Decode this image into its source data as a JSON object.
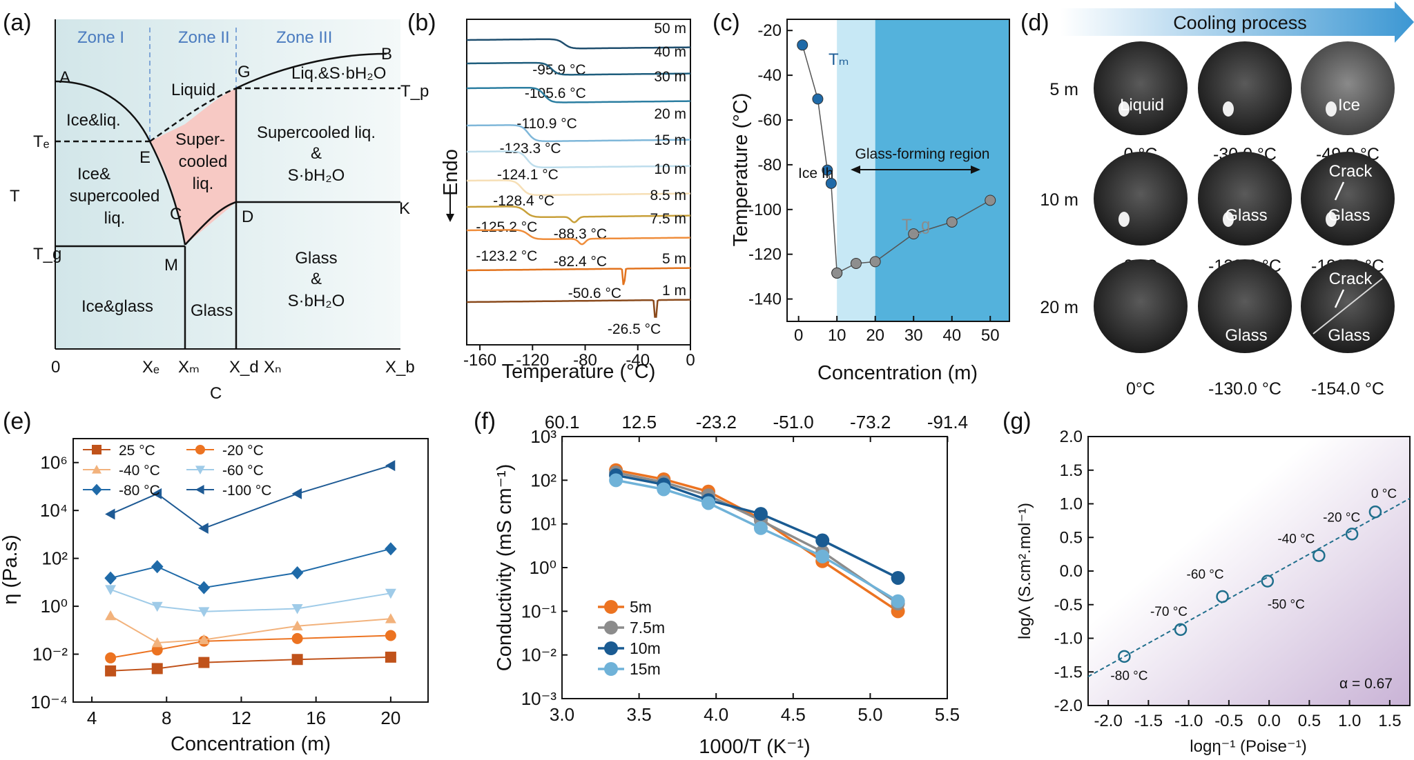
{
  "panel_labels": [
    "(a)",
    "(b)",
    "(c)",
    "(d)",
    "(e)",
    "(f)",
    "(g)"
  ],
  "colors": {
    "ice": "#5b9fc7",
    "deep_blue": "#1f5e97",
    "light_blue": "#7fb7d9",
    "orange": "#ec7321",
    "grey": "#8c8c8c",
    "navy": "#1e3f6d",
    "tan": "#f2b27c",
    "pink": "#f7c9c4",
    "teal_region": "#54b2dc",
    "light_region": "#c7e8f5"
  },
  "panel_a": {
    "zones": [
      "Zone I",
      "Zone II",
      "Zone III"
    ],
    "points": {
      "A": "A",
      "B": "B",
      "C": "C",
      "D": "D",
      "E": "E",
      "G": "G",
      "K": "K",
      "M": "M"
    },
    "y_labels": {
      "T": "T",
      "Te": "Tₑ",
      "Tg": "T_g",
      "Tp": "T_p"
    },
    "x_labels": {
      "zero": "0",
      "xe": "Xₑ",
      "xm": "Xₘ",
      "xd": "X_d",
      "xn": "Xₙ",
      "xb": "X_b"
    },
    "x_axis_title": "C",
    "regions": {
      "liquid": "Liquid",
      "ice_liq": "Ice&liq.",
      "ice_sc_1": "Ice&",
      "ice_sc_2": "supercooled",
      "ice_sc_3": "liq.",
      "super_1": "Super-",
      "super_2": "cooled",
      "super_3": "liq.",
      "liq_s": "Liq.&S·bH₂O",
      "sc_s_1": "Supercooled liq.",
      "sc_s_2": "&",
      "sc_s_3": "S·bH₂O",
      "ice_glass": "Ice&glass",
      "glass": "Glass",
      "glass_s_1": "Glass",
      "glass_s_2": "&",
      "glass_s_3": "S·bH₂O"
    }
  },
  "chart_data": [
    {
      "panel": "b",
      "type": "line",
      "xlabel": "Temperature (°C)",
      "ylabel": "Endo",
      "xlim": [
        -170,
        0
      ],
      "xticks": [
        "-160",
        "-120",
        "-80",
        "-40",
        "0"
      ],
      "curves": [
        {
          "name": "50 m",
          "color": "#1f4e6e",
          "annotations": [
            "-95.9 °C"
          ]
        },
        {
          "name": "40 m",
          "color": "#1f5e7d",
          "annotations": [
            "-105.6 °C"
          ]
        },
        {
          "name": "30 m",
          "color": "#2b7ea1",
          "annotations": [
            "-110.9 °C"
          ]
        },
        {
          "name": "20 m",
          "color": "#7fb7d9",
          "annotations": [
            "-123.3 °C"
          ]
        },
        {
          "name": "15 m",
          "color": "#bdddec",
          "annotations": [
            "-124.1 °C"
          ]
        },
        {
          "name": "10 m",
          "color": "#f6dfb6",
          "annotations": [
            "-128.4 °C"
          ]
        },
        {
          "name": "8.5 m",
          "color": "#c8a03a",
          "annotations": [
            "-125.2 °C",
            "-88.3 °C"
          ]
        },
        {
          "name": "7.5 m",
          "color": "#ef8d3b",
          "annotations": [
            "-123.2 °C",
            "-82.4 °C"
          ]
        },
        {
          "name": "5 m",
          "color": "#e2731e",
          "annotations": [
            "-50.6 °C"
          ]
        },
        {
          "name": "1 m",
          "color": "#8a4a1c",
          "annotations": [
            "-26.5 °C"
          ]
        }
      ]
    },
    {
      "panel": "c",
      "type": "scatter",
      "xlabel": "Concentration (m)",
      "ylabel": "Temperature (°C)",
      "xlim": [
        -3,
        55
      ],
      "ylim": [
        -150,
        -15
      ],
      "xticks": [
        0,
        10,
        20,
        30,
        40,
        50
      ],
      "yticks": [
        -20,
        -40,
        -60,
        -80,
        -100,
        -120,
        -140
      ],
      "series": [
        {
          "name": "Tm",
          "x": [
            1,
            5,
            7.5,
            8.5,
            10
          ],
          "y": [
            -26.5,
            -50.6,
            -82.4,
            -88.3,
            -128.4
          ]
        },
        {
          "name": "Tg",
          "x": [
            10,
            15,
            20,
            30,
            40,
            50
          ],
          "y": [
            -128.4,
            -124.1,
            -123.3,
            -110.9,
            -105.6,
            -95.9
          ]
        }
      ],
      "labels": {
        "tm": "Tₘ",
        "tg": "T_g",
        "ice": "Ice Ih",
        "region": "Glass-forming region"
      }
    },
    {
      "panel": "e",
      "type": "line",
      "xlabel": "Concentration (m)",
      "ylabel": "η (Pa.s)",
      "log_y": true,
      "xlim": [
        3,
        22
      ],
      "ylim_exp": [
        -4,
        7
      ],
      "xticks": [
        4,
        8,
        12,
        16,
        20
      ],
      "yticks": [
        "10⁻⁴",
        "10⁻²",
        "10⁰",
        "10²",
        "10⁴",
        "10⁶"
      ],
      "x": [
        5,
        7.5,
        10,
        15,
        20
      ],
      "series": [
        {
          "name": "25 °C",
          "color": "#c0521a",
          "marker": "square",
          "values": [
            0.002,
            0.0025,
            0.0045,
            0.006,
            0.0075
          ]
        },
        {
          "name": "-20 °C",
          "color": "#ec7321",
          "marker": "circle",
          "values": [
            0.007,
            0.015,
            0.035,
            0.045,
            0.06
          ]
        },
        {
          "name": "-40 °C",
          "color": "#f2b27c",
          "marker": "triangle-up",
          "values": [
            0.4,
            0.03,
            0.04,
            0.15,
            0.3
          ]
        },
        {
          "name": "-60 °C",
          "color": "#9fcbe8",
          "marker": "triangle-down",
          "values": [
            5,
            1.0,
            0.6,
            0.8,
            3.5
          ]
        },
        {
          "name": "-80 °C",
          "color": "#1f6aa8",
          "marker": "diamond",
          "values": [
            15,
            45,
            6,
            25,
            250
          ]
        },
        {
          "name": "-100 °C",
          "color": "#1e5a94",
          "marker": "triangle-left",
          "values": [
            7000,
            50000,
            1800,
            50000,
            750000
          ]
        }
      ]
    },
    {
      "panel": "f",
      "type": "line",
      "xlabel": "1000/T (K⁻¹)",
      "ylabel": "Conductivity (mS cm⁻¹)",
      "log_y": true,
      "xlim": [
        3.0,
        5.5
      ],
      "ylim_exp": [
        -3,
        3
      ],
      "xticks": [
        "3.0",
        "3.5",
        "4.0",
        "4.5",
        "5.0",
        "5.5"
      ],
      "yticks": [
        "10⁻³",
        "10⁻²",
        "10⁻¹",
        "10⁰",
        "10¹",
        "10²",
        "10³"
      ],
      "top_ticks": [
        "60.1",
        "12.5",
        "-23.2",
        "-51.0",
        "-73.2",
        "-91.4"
      ],
      "x": [
        3.35,
        3.66,
        3.95,
        4.29,
        4.69,
        5.18
      ],
      "series": [
        {
          "name": "5m",
          "color": "#ec7321",
          "values": [
            170,
            105,
            55,
            13,
            1.4,
            0.1
          ]
        },
        {
          "name": "7.5m",
          "color": "#8c8c8c",
          "values": [
            150,
            90,
            45,
            12,
            2.3,
            0.15
          ]
        },
        {
          "name": "10m",
          "color": "#1a5b92",
          "values": [
            130,
            80,
            35,
            17,
            4.2,
            0.58
          ]
        },
        {
          "name": "15m",
          "color": "#6fb2d8",
          "values": [
            100,
            62,
            30,
            8,
            1.8,
            0.17
          ]
        }
      ]
    },
    {
      "panel": "g",
      "type": "scatter",
      "xlabel": "logη⁻¹ (Poise⁻¹)",
      "ylabel": "logΛ (S.cm².mol⁻¹)",
      "xlim": [
        -2.25,
        1.75
      ],
      "ylim": [
        -2.0,
        2.0
      ],
      "xticks": [
        "-2.0",
        "-1.5",
        "-1.0",
        "-0.5",
        "0.0",
        "0.5",
        "1.0",
        "1.5"
      ],
      "yticks": [
        "2.0",
        "1.5",
        "1.0",
        "0.5",
        "0.0",
        "-0.5",
        "-1.0",
        "-1.5",
        "-2.0"
      ],
      "x": [
        -1.8,
        -1.1,
        -0.58,
        -0.02,
        0.62,
        1.03,
        1.32
      ],
      "y": [
        -1.27,
        -0.87,
        -0.38,
        -0.15,
        0.23,
        0.55,
        0.88
      ],
      "point_labels": [
        "-80 °C",
        "-70 °C",
        "-60 °C",
        "-50 °C",
        "-40 °C",
        "-20 °C",
        "0 °C"
      ],
      "fit_line": {
        "x": [
          -2.25,
          1.75
        ],
        "y": [
          -1.57,
          1.08
        ]
      },
      "note": "α = 0.67"
    }
  ],
  "panel_d": {
    "title": "Cooling process",
    "rows": [
      {
        "label": "5 m",
        "temps": [
          "0 °C",
          "-30.0 °C",
          "-49.0 °C"
        ],
        "texts": [
          "Liquid",
          "",
          "Ice"
        ]
      },
      {
        "label": "10 m",
        "temps": [
          "0 °C",
          "-128.0 °C",
          "-190.0 °C"
        ],
        "texts": [
          "",
          "Glass",
          "Glass"
        ],
        "crack": "Crack"
      },
      {
        "label": "20 m",
        "temps": [
          "0°C",
          "-130.0 °C",
          "-154.0 °C"
        ],
        "texts": [
          "",
          "Glass",
          "Glass"
        ],
        "crack": "Crack"
      }
    ]
  }
}
